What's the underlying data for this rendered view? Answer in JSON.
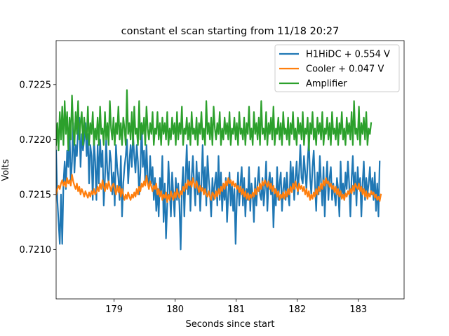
{
  "chart_data": {
    "type": "line",
    "title": "constant el scan starting from 11/18 20:27",
    "xlabel": "Seconds since start",
    "ylabel": "Volts",
    "xlim": [
      178.05,
      183.75
    ],
    "ylim": [
      0.72055,
      0.7229
    ],
    "x_ticks": [
      179,
      180,
      181,
      182,
      183
    ],
    "y_ticks": [
      0.721,
      0.7215,
      0.722,
      0.7225
    ],
    "x_tick_labels": [
      "179",
      "180",
      "181",
      "182",
      "183"
    ],
    "y_tick_labels": [
      "0.7210",
      "0.7215",
      "0.7220",
      "0.7225"
    ],
    "grid": false,
    "legend_position": "top-right",
    "series": [
      {
        "name": "H1HiDC + 0.554 V",
        "color": "#1f77b4",
        "x_start": 178.05,
        "x_step": 0.02,
        "values": [
          0.7219,
          0.72145,
          0.72125,
          0.72105,
          0.7215,
          0.72105,
          0.7216,
          0.7218,
          0.72155,
          0.7219,
          0.72175,
          0.7221,
          0.7216,
          0.7218,
          0.72215,
          0.7217,
          0.72195,
          0.72185,
          0.7221,
          0.7222,
          0.72175,
          0.72205,
          0.7219,
          0.722,
          0.72215,
          0.72185,
          0.72205,
          0.7216,
          0.72195,
          0.72185,
          0.72145,
          0.722,
          0.7218,
          0.72145,
          0.72195,
          0.7216,
          0.722,
          0.72175,
          0.7219,
          0.7214,
          0.72165,
          0.722,
          0.7217,
          0.7216,
          0.7219,
          0.7218,
          0.7215,
          0.7217,
          0.7214,
          0.72195,
          0.72175,
          0.72165,
          0.72145,
          0.72185,
          0.7213,
          0.7216,
          0.72175,
          0.72185,
          0.722,
          0.7216,
          0.7218,
          0.72195,
          0.72175,
          0.72205,
          0.72185,
          0.7217,
          0.72195,
          0.7218,
          0.7215,
          0.7217,
          0.72215,
          0.72175,
          0.7219,
          0.7216,
          0.72195,
          0.72165,
          0.72155,
          0.72185,
          0.7216,
          0.72175,
          0.72145,
          0.72165,
          0.72135,
          0.72155,
          0.7213,
          0.72165,
          0.7215,
          0.72185,
          0.72125,
          0.7216,
          0.7211,
          0.7214,
          0.7218,
          0.72155,
          0.7213,
          0.7217,
          0.7215,
          0.7213,
          0.72165,
          0.72145,
          0.7216,
          0.7214,
          0.721,
          0.72155,
          0.72175,
          0.7213,
          0.72165,
          0.72195,
          0.7215,
          0.7218,
          0.72135,
          0.72165,
          0.72185,
          0.7216,
          0.7214,
          0.7218,
          0.7215,
          0.7217,
          0.72135,
          0.7216,
          0.72195,
          0.7215,
          0.72175,
          0.7214,
          0.72185,
          0.72165,
          0.7215,
          0.7213,
          0.72165,
          0.72145,
          0.7216,
          0.7217,
          0.7214,
          0.72185,
          0.72145,
          0.7217,
          0.72135,
          0.7216,
          0.72145,
          0.72165,
          0.72125,
          0.7215,
          0.7217,
          0.7214,
          0.7216,
          0.72135,
          0.72155,
          0.72105,
          0.72145,
          0.7217,
          0.7214,
          0.7216,
          0.72175,
          0.7214,
          0.72165,
          0.7213,
          0.72155,
          0.72145,
          0.72175,
          0.72135,
          0.7216,
          0.7215,
          0.72125,
          0.72165,
          0.7214,
          0.7216,
          0.72175,
          0.7215,
          0.72145,
          0.72165,
          0.7214,
          0.72155,
          0.7218,
          0.72135,
          0.7216,
          0.7217,
          0.7215,
          0.72165,
          0.7212,
          0.72155,
          0.7214,
          0.72175,
          0.72145,
          0.7216,
          0.7217,
          0.72135,
          0.72155,
          0.72165,
          0.72145,
          0.7217,
          0.7215,
          0.7214,
          0.7218,
          0.72155,
          0.72175,
          0.72145,
          0.72165,
          0.7218,
          0.7215,
          0.7217,
          0.72195,
          0.72165,
          0.7216,
          0.72185,
          0.7217,
          0.72155,
          0.7218,
          0.722,
          0.72165,
          0.7215,
          0.72175,
          0.7219,
          0.7216,
          0.72135,
          0.7217,
          0.7215,
          0.72185,
          0.7216,
          0.7214,
          0.72175,
          0.7213,
          0.7216,
          0.7218,
          0.72145,
          0.72165,
          0.72175,
          0.72145,
          0.7216,
          0.7215,
          0.7214,
          0.72165,
          0.72155,
          0.7213,
          0.7218,
          0.7215,
          0.7216,
          0.72145,
          0.7217,
          0.72155,
          0.7218,
          0.7216,
          0.7213,
          0.72165,
          0.72185,
          0.7215,
          0.7217,
          0.7214,
          0.72175,
          0.72155,
          0.72165,
          0.7213,
          0.7216,
          0.7218,
          0.72145,
          0.72165,
          0.7215,
          0.7216,
          0.72175,
          0.7215,
          0.72165,
          0.72145,
          0.7217,
          0.72135,
          0.7216,
          0.7213,
          0.7218
        ]
      },
      {
        "name": "Cooler + 0.047 V",
        "color": "#ff7f0e",
        "x_start": 178.05,
        "x_step": 0.02,
        "values": [
          0.7215,
          0.72155,
          0.72158,
          0.72155,
          0.7216,
          0.72163,
          0.72158,
          0.72162,
          0.72157,
          0.72165,
          0.7216,
          0.72163,
          0.72158,
          0.72168,
          0.72162,
          0.72158,
          0.72155,
          0.7216,
          0.72153,
          0.72157,
          0.7215,
          0.72155,
          0.72152,
          0.72148,
          0.72153,
          0.7215,
          0.72147,
          0.72152,
          0.72148,
          0.72153,
          0.7215,
          0.72155,
          0.7215,
          0.72152,
          0.72157,
          0.72153,
          0.7216,
          0.72155,
          0.72163,
          0.72157,
          0.72153,
          0.7216,
          0.72155,
          0.72162,
          0.72157,
          0.72153,
          0.72158,
          0.7216,
          0.72155,
          0.7215,
          0.72158,
          0.72152,
          0.72157,
          0.72148,
          0.72155,
          0.7215,
          0.72145,
          0.7215,
          0.72146,
          0.72152,
          0.72148,
          0.72145,
          0.7215,
          0.72147,
          0.72152,
          0.72148,
          0.72155,
          0.7215,
          0.72157,
          0.72153,
          0.7216,
          0.72157,
          0.72162,
          0.72158,
          0.72167,
          0.7216,
          0.72155,
          0.72162,
          0.72157,
          0.72153,
          0.72158,
          0.72155,
          0.7216,
          0.7215,
          0.72155,
          0.72148,
          0.72153,
          0.72145,
          0.7215,
          0.72147,
          0.72152,
          0.72143,
          0.7215,
          0.72145,
          0.72153,
          0.72148,
          0.72145,
          0.72152,
          0.72147,
          0.72155,
          0.7215,
          0.72147,
          0.72153,
          0.7215,
          0.72157,
          0.72153,
          0.7216,
          0.72155,
          0.72163,
          0.72158,
          0.72162,
          0.72157,
          0.72165,
          0.7216,
          0.72156,
          0.72162,
          0.72157,
          0.72152,
          0.72158,
          0.72153,
          0.72156,
          0.7215,
          0.72155,
          0.7215,
          0.72148,
          0.72153,
          0.72148,
          0.72145,
          0.72152,
          0.7215,
          0.72146,
          0.72153,
          0.72148,
          0.72155,
          0.7215,
          0.72157,
          0.72153,
          0.7216,
          0.72155,
          0.72162,
          0.72158,
          0.72165,
          0.7216,
          0.72163,
          0.72158,
          0.72162,
          0.72157,
          0.7216,
          0.72155,
          0.72158,
          0.72152,
          0.72157,
          0.7215,
          0.72155,
          0.72148,
          0.72153,
          0.72146,
          0.72151,
          0.72145,
          0.7215,
          0.72147,
          0.72152,
          0.72148,
          0.72155,
          0.7215,
          0.72157,
          0.72153,
          0.7216,
          0.72155,
          0.72162,
          0.72158,
          0.72163,
          0.7216,
          0.72157,
          0.72162,
          0.72155,
          0.7216,
          0.72153,
          0.72158,
          0.72151,
          0.72155,
          0.72148,
          0.72153,
          0.72145,
          0.7215,
          0.72147,
          0.72152,
          0.72146,
          0.72153,
          0.72148,
          0.72155,
          0.7215,
          0.72157,
          0.72152,
          0.7216,
          0.72155,
          0.72162,
          0.72157,
          0.72153,
          0.7216,
          0.72155,
          0.72158,
          0.72153,
          0.72157,
          0.7215,
          0.72155,
          0.72148,
          0.72153,
          0.72145,
          0.7215,
          0.72146,
          0.72152,
          0.72148,
          0.72155,
          0.7215,
          0.72157,
          0.72153,
          0.7216,
          0.72155,
          0.72163,
          0.72158,
          0.72165,
          0.7216,
          0.72162,
          0.72157,
          0.7216,
          0.72155,
          0.72158,
          0.72152,
          0.72157,
          0.7215,
          0.72155,
          0.72148,
          0.72153,
          0.72146,
          0.7215,
          0.72145,
          0.72151,
          0.72148,
          0.72153,
          0.7215,
          0.72155,
          0.72151,
          0.72158,
          0.72153,
          0.7216,
          0.72157,
          0.72155,
          0.7216,
          0.72153,
          0.72157,
          0.7215,
          0.72155,
          0.72148,
          0.72153,
          0.72146,
          0.72151,
          0.72148,
          0.72153,
          0.7215,
          0.72152,
          0.72147,
          0.7215,
          0.72145,
          0.72148,
          0.72144,
          0.7215
        ]
      },
      {
        "name": "Amplifier",
        "color": "#2ca02c",
        "x_start": 178.05,
        "x_step": 0.02,
        "values": [
          0.72195,
          0.72215,
          0.7219,
          0.72225,
          0.722,
          0.7223,
          0.72195,
          0.72235,
          0.72205,
          0.72225,
          0.7219,
          0.7222,
          0.722,
          0.7224,
          0.7221,
          0.72195,
          0.72225,
          0.72205,
          0.72235,
          0.722,
          0.72215,
          0.72225,
          0.72195,
          0.7222,
          0.72205,
          0.722,
          0.7223,
          0.72195,
          0.72215,
          0.72205,
          0.72225,
          0.72195,
          0.7221,
          0.722,
          0.7222,
          0.72195,
          0.7223,
          0.72205,
          0.7221,
          0.72195,
          0.72225,
          0.722,
          0.72215,
          0.72195,
          0.72235,
          0.7221,
          0.722,
          0.7222,
          0.72195,
          0.72215,
          0.72205,
          0.7223,
          0.722,
          0.72215,
          0.72195,
          0.7222,
          0.7221,
          0.72195,
          0.72245,
          0.72205,
          0.72215,
          0.722,
          0.72225,
          0.72195,
          0.7223,
          0.72205,
          0.7221,
          0.72195,
          0.72235,
          0.722,
          0.72215,
          0.72205,
          0.7222,
          0.72195,
          0.7223,
          0.7221,
          0.722,
          0.72215,
          0.72205,
          0.72225,
          0.72195,
          0.7221,
          0.72205,
          0.72225,
          0.722,
          0.72215,
          0.72195,
          0.7222,
          0.72205,
          0.72215,
          0.722,
          0.72225,
          0.72195,
          0.7221,
          0.722,
          0.7222,
          0.72205,
          0.72215,
          0.72195,
          0.72225,
          0.722,
          0.72215,
          0.72205,
          0.7223,
          0.72195,
          0.7221,
          0.72205,
          0.7222,
          0.722,
          0.72215,
          0.72195,
          0.72225,
          0.72205,
          0.7221,
          0.722,
          0.7222,
          0.72195,
          0.72215,
          0.72205,
          0.72225,
          0.722,
          0.7221,
          0.72195,
          0.72235,
          0.72205,
          0.72215,
          0.722,
          0.7222,
          0.72195,
          0.7223,
          0.7221,
          0.722,
          0.72215,
          0.72205,
          0.72225,
          0.72195,
          0.7221,
          0.722,
          0.7222,
          0.72205,
          0.72215,
          0.722,
          0.72225,
          0.72195,
          0.7221,
          0.72205,
          0.7222,
          0.722,
          0.72215,
          0.72195,
          0.72225,
          0.72205,
          0.7221,
          0.722,
          0.7222,
          0.72195,
          0.72215,
          0.72205,
          0.7223,
          0.722,
          0.7221,
          0.72195,
          0.72225,
          0.72205,
          0.72215,
          0.722,
          0.7222,
          0.72195,
          0.72235,
          0.72205,
          0.7221,
          0.722,
          0.72225,
          0.72195,
          0.72215,
          0.72205,
          0.7222,
          0.722,
          0.7223,
          0.72195,
          0.7221,
          0.72205,
          0.7222,
          0.722,
          0.72215,
          0.72195,
          0.72225,
          0.72205,
          0.7221,
          0.722,
          0.7222,
          0.72195,
          0.72215,
          0.72205,
          0.72225,
          0.722,
          0.7221,
          0.72195,
          0.7222,
          0.72205,
          0.72215,
          0.722,
          0.72225,
          0.72195,
          0.7221,
          0.72205,
          0.7222,
          0.7219,
          0.72215,
          0.72205,
          0.72225,
          0.722,
          0.7221,
          0.72195,
          0.7222,
          0.72205,
          0.72215,
          0.722,
          0.72225,
          0.72195,
          0.7221,
          0.72205,
          0.7222,
          0.722,
          0.72215,
          0.72195,
          0.72225,
          0.72205,
          0.7221,
          0.722,
          0.7222,
          0.72195,
          0.72215,
          0.72205,
          0.72225,
          0.722,
          0.7221,
          0.72195,
          0.7222,
          0.72205,
          0.72215,
          0.722,
          0.72225,
          0.72195,
          0.72235,
          0.72205,
          0.7221,
          0.722,
          0.7223,
          0.72195,
          0.72215,
          0.72205,
          0.7222,
          0.722,
          0.72225,
          0.72195,
          0.7221,
          0.72205,
          0.72215
        ]
      }
    ]
  }
}
